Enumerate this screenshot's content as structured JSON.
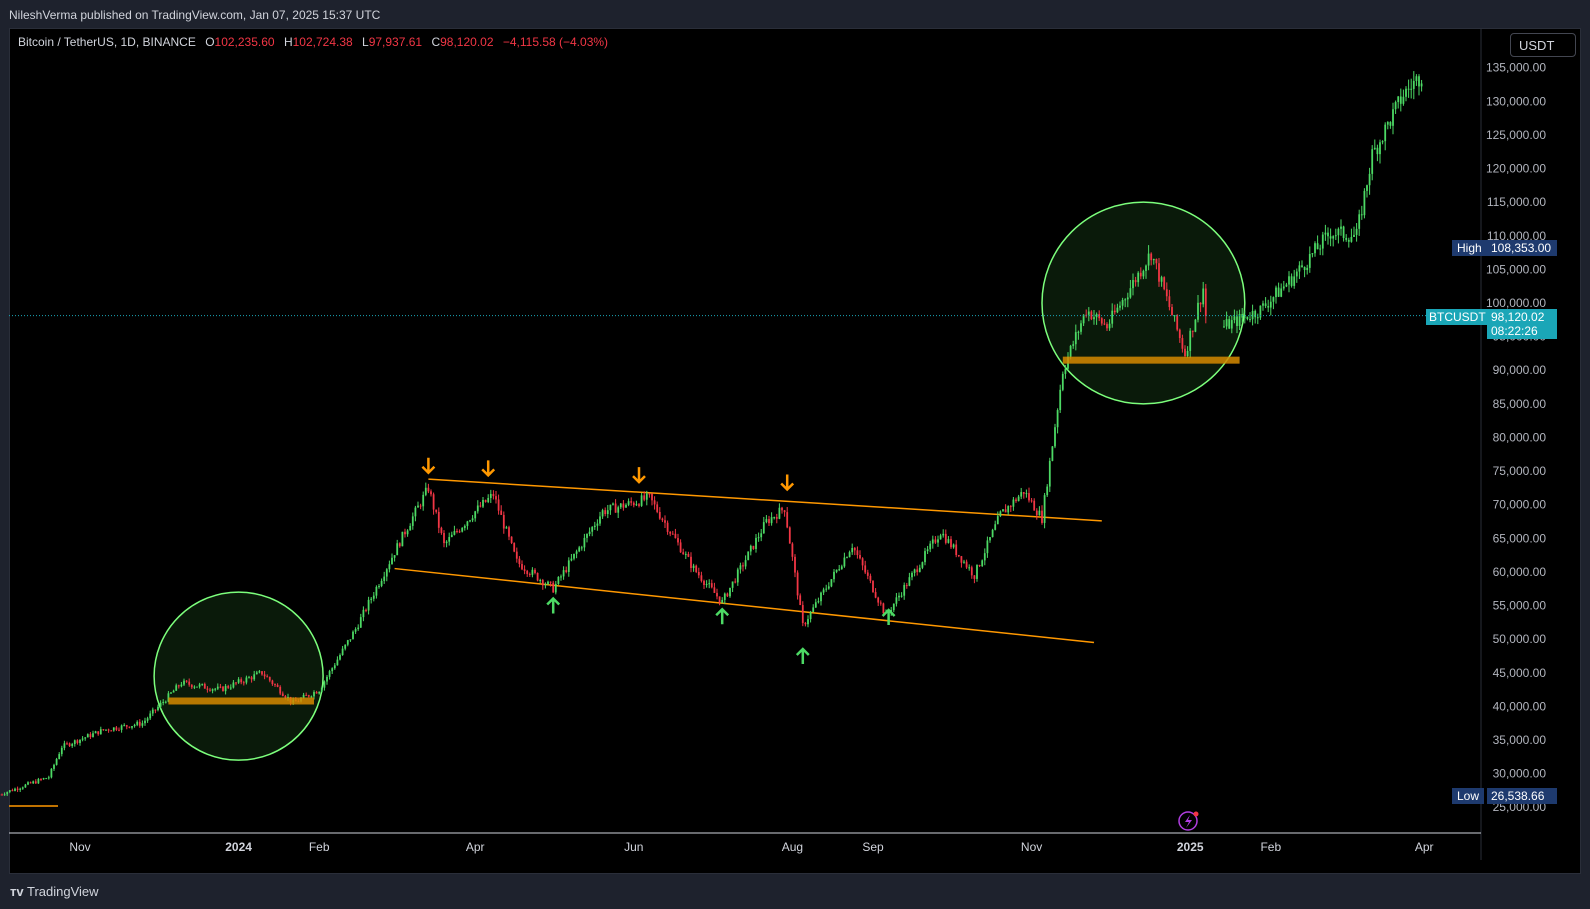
{
  "publisher_line": "NileshVerma published on TradingView.com, Jan 07, 2025 15:37 UTC",
  "legend": {
    "symbol": "Bitcoin / TetherUS, 1D, BINANCE",
    "open_label": "O",
    "open": "102,235.60",
    "high_label": "H",
    "high": "102,724.38",
    "low_label": "L",
    "low": "97,937.61",
    "close_label": "C",
    "close": "98,120.02",
    "change": "−4,115.58 (−4.03%)"
  },
  "currency_button": "USDT",
  "markers": {
    "high_label": "High",
    "high_value": "108,353.00",
    "low_label": "Low",
    "low_value": "26,538.66",
    "symbol_tag": "BTCUSDT",
    "last_price": "98,120.02",
    "countdown": "08:22:26"
  },
  "footer_brand": "TradingView",
  "colors": {
    "background": "#000000",
    "up_candle": "#4cd964",
    "down_candle": "#f23645",
    "trendline": "#ff9800",
    "zone": "#d68a00",
    "circle": "#7cff7c",
    "price_line": "#1aa6b7",
    "high_low_badge": "#1e3a6e"
  },
  "chart_data": {
    "type": "candlestick",
    "title": "Bitcoin / TetherUS, 1D, BINANCE",
    "price_axis": {
      "ticks": [
        "25,000.00",
        "30,000.00",
        "35,000.00",
        "40,000.00",
        "45,000.00",
        "50,000.00",
        "55,000.00",
        "60,000.00",
        "65,000.00",
        "70,000.00",
        "75,000.00",
        "80,000.00",
        "85,000.00",
        "90,000.00",
        "95,000.00",
        "100,000.00",
        "105,000.00",
        "110,000.00",
        "115,000.00",
        "120,000.00",
        "125,000.00",
        "130,000.00",
        "135,000.00"
      ],
      "ylim": [
        23000,
        137000
      ]
    },
    "time_axis": {
      "labels": [
        {
          "text": "Nov",
          "date": "2023-11-01"
        },
        {
          "text": "2024",
          "date": "2024-01-01",
          "bold": true
        },
        {
          "text": "Feb",
          "date": "2024-02-01"
        },
        {
          "text": "Apr",
          "date": "2024-04-01"
        },
        {
          "text": "Jun",
          "date": "2024-06-01"
        },
        {
          "text": "Aug",
          "date": "2024-08-01"
        },
        {
          "text": "Sep",
          "date": "2024-09-01"
        },
        {
          "text": "Nov",
          "date": "2024-11-01"
        },
        {
          "text": "2025",
          "date": "2025-01-01",
          "bold": true
        },
        {
          "text": "Feb",
          "date": "2025-02-01"
        },
        {
          "text": "Apr",
          "date": "2025-04-01"
        }
      ]
    },
    "price_path": [
      [
        "2023-10-01",
        26900
      ],
      [
        "2023-10-20",
        29500
      ],
      [
        "2023-10-25",
        34000
      ],
      [
        "2023-11-10",
        36500
      ],
      [
        "2023-11-25",
        37500
      ],
      [
        "2023-12-05",
        41500
      ],
      [
        "2023-12-10",
        43500
      ],
      [
        "2023-12-25",
        42500
      ],
      [
        "2024-01-10",
        45000
      ],
      [
        "2024-01-22",
        40500
      ],
      [
        "2024-02-01",
        42500
      ],
      [
        "2024-02-15",
        51500
      ],
      [
        "2024-02-28",
        61500
      ],
      [
        "2024-03-05",
        66000
      ],
      [
        "2024-03-14",
        72500
      ],
      [
        "2024-03-20",
        64000
      ],
      [
        "2024-04-01",
        69000
      ],
      [
        "2024-04-08",
        71500
      ],
      [
        "2024-04-17",
        61500
      ],
      [
        "2024-05-01",
        57500
      ],
      [
        "2024-05-20",
        69000
      ],
      [
        "2024-06-07",
        71000
      ],
      [
        "2024-06-24",
        60500
      ],
      [
        "2024-07-05",
        55500
      ],
      [
        "2024-07-22",
        67500
      ],
      [
        "2024-07-29",
        69500
      ],
      [
        "2024-08-05",
        52000
      ],
      [
        "2024-08-24",
        64000
      ],
      [
        "2024-09-06",
        53500
      ],
      [
        "2024-09-27",
        66000
      ],
      [
        "2024-10-10",
        59500
      ],
      [
        "2024-10-20",
        68500
      ],
      [
        "2024-10-29",
        72000
      ],
      [
        "2024-11-05",
        68000
      ],
      [
        "2024-11-13",
        90000
      ],
      [
        "2024-11-22",
        99000
      ],
      [
        "2024-11-30",
        96500
      ],
      [
        "2024-12-17",
        107500
      ],
      [
        "2024-12-30",
        92500
      ],
      [
        "2025-01-06",
        102200
      ],
      [
        "2025-01-07",
        98120
      ]
    ],
    "projection_path": [
      [
        "2025-01-14",
        96500
      ],
      [
        "2025-01-28",
        99000
      ],
      [
        "2025-02-10",
        104000
      ],
      [
        "2025-02-24",
        110500
      ],
      [
        "2025-03-06",
        110000
      ],
      [
        "2025-03-12",
        122000
      ],
      [
        "2025-03-24",
        131000
      ],
      [
        "2025-03-31",
        134000
      ]
    ],
    "annotations": {
      "upper_trendline": [
        [
          "2024-03-14",
          73800
        ],
        [
          "2024-11-28",
          67600
        ]
      ],
      "lower_trendline": [
        [
          "2024-03-01",
          60500
        ],
        [
          "2024-11-25",
          49500
        ]
      ],
      "zones": [
        {
          "from": "2023-12-05",
          "to": "2024-01-30",
          "price": 40800
        },
        {
          "from": "2024-11-13",
          "to": "2025-01-20",
          "price": 91500
        }
      ],
      "circles": [
        {
          "center": "2024-01-01",
          "price": 44500,
          "r_days": 25,
          "r_price": 12500
        },
        {
          "center": "2024-12-14",
          "price": 100000,
          "r_days": 30,
          "r_price": 15000
        }
      ],
      "arrows_down": [
        [
          "2024-03-14",
          75800
        ],
        [
          "2024-04-06",
          75400
        ],
        [
          "2024-06-03",
          74400
        ],
        [
          "2024-07-30",
          73300
        ]
      ],
      "arrows_up": [
        [
          "2024-05-01",
          55000
        ],
        [
          "2024-07-05",
          53400
        ],
        [
          "2024-08-05",
          47500
        ],
        [
          "2024-09-07",
          53300
        ]
      ]
    },
    "high": 108353.0,
    "low": 26538.66,
    "last": 98120.02
  }
}
